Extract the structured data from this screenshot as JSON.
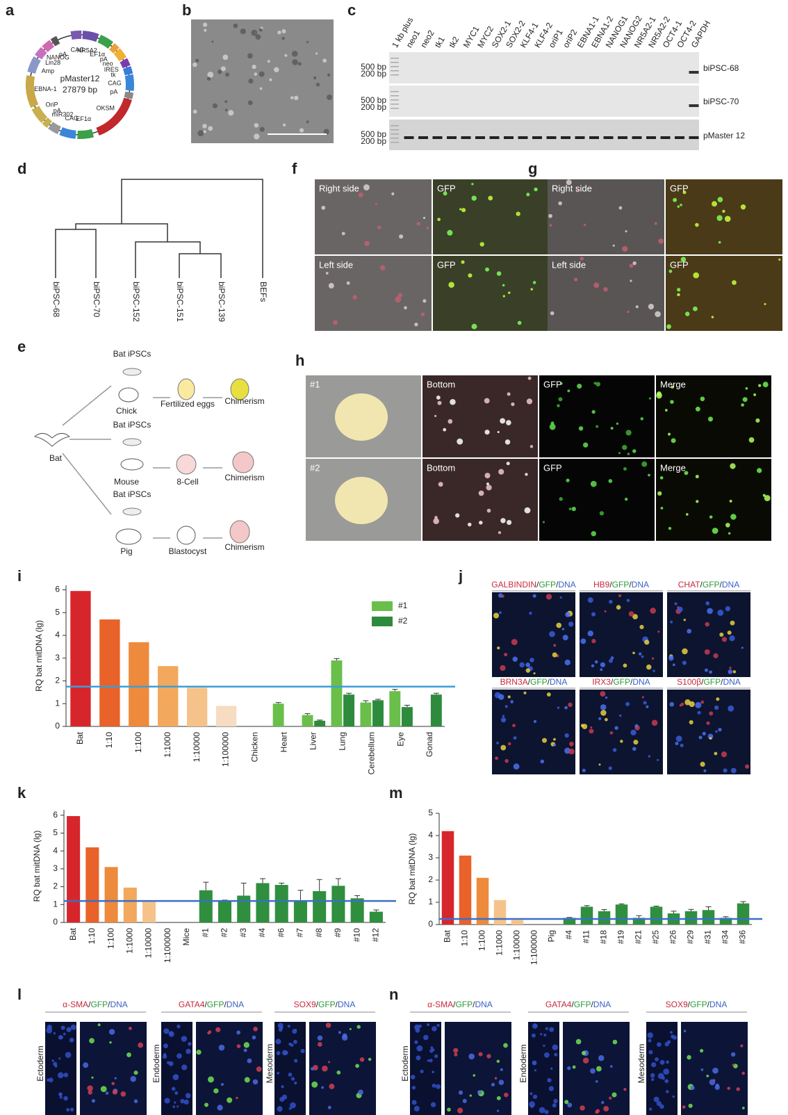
{
  "figure": {
    "panel_labels": [
      "a",
      "b",
      "c",
      "d",
      "e",
      "f",
      "g",
      "h",
      "i",
      "j",
      "k",
      "l",
      "m",
      "n"
    ],
    "a": {
      "name": "pMaster12",
      "size": "27879 bp",
      "features": [
        {
          "label": "CAG",
          "color": "#7a58b0"
        },
        {
          "label": "NR5A2",
          "color": "#6a50a8"
        },
        {
          "label": "EF1α",
          "color": "#3aa04a"
        },
        {
          "label": "pA",
          "color": "#e8a23a"
        },
        {
          "label": "neo",
          "color": "#f0b030"
        },
        {
          "label": "IRES",
          "color": "#7a3ab0"
        },
        {
          "label": "tk",
          "color": "#3a7ad8"
        },
        {
          "label": "CAG",
          "color": "#3a86d8"
        },
        {
          "label": "pA",
          "color": "#888888"
        },
        {
          "label": "OKSM",
          "color": "#c0282c"
        },
        {
          "label": "EF1α",
          "color": "#3aa04a"
        },
        {
          "label": "CAG",
          "color": "#3a86d8"
        },
        {
          "label": "miR302",
          "color": "#999999"
        },
        {
          "label": "pA",
          "color": "#c8b050"
        },
        {
          "label": "OriP",
          "color": "#c8b050"
        },
        {
          "label": "EBNA-1",
          "color": "#c8a848"
        },
        {
          "label": "Amp",
          "color": "#8a98c8"
        },
        {
          "label": "Lin28",
          "color": "#c870c0"
        },
        {
          "label": "NANOG",
          "color": "#d06ab0"
        },
        {
          "label": "pA",
          "color": "#555555"
        }
      ]
    },
    "c": {
      "lanes": [
        "1 kb plus",
        "neo1",
        "neo2",
        "tk1",
        "tk2",
        "MYC1",
        "MYC2",
        "SOX2-1",
        "SOX2-2",
        "KLF4-1",
        "KLF4-2",
        "oriP1",
        "oriP2",
        "EBNA1-1",
        "EBNA1-2",
        "NANOG1",
        "NANOG2",
        "NR5A2-1",
        "NR5A2-2",
        "OCT4-1",
        "OCT4-2",
        "GAPDH"
      ],
      "rows": [
        "biPSC-68",
        "biPSC-70",
        "pMaster 12"
      ],
      "markers": [
        "500 bp",
        "200 bp"
      ]
    },
    "d": {
      "leaves": [
        "biPSC-68",
        "biPSC-70",
        "biPSC-152",
        "biPSC-151",
        "biPSC-139",
        "BEFs"
      ]
    },
    "e": {
      "source": "Bat",
      "cell": "Bat iPSCs",
      "result": "Chimerism",
      "hosts": [
        {
          "name": "Chick",
          "stage": "Fertilized eggs"
        },
        {
          "name": "Mouse",
          "stage": "8-Cell"
        },
        {
          "name": "Pig",
          "stage": "Blastocyst"
        }
      ]
    },
    "f": {
      "views": [
        "Right side",
        "GFP",
        "Left side",
        "GFP"
      ]
    },
    "g": {
      "views": [
        "Right side",
        "GFP",
        "Left side",
        "GFP"
      ]
    },
    "h": {
      "rows": [
        {
          "id": "#1",
          "views": [
            "Bottom",
            "GFP",
            "Merge"
          ]
        },
        {
          "id": "#2",
          "views": [
            "Bottom",
            "GFP",
            "Merge"
          ]
        }
      ]
    },
    "j": {
      "stains": [
        [
          "GALBINDIN",
          "/",
          "GFP",
          "/",
          "DNA"
        ],
        [
          "HB9",
          "/",
          "GFP",
          "/",
          "DNA"
        ],
        [
          "CHAT",
          "/",
          "GFP",
          "/",
          "DNA"
        ],
        [
          "BRN3A",
          "/",
          "GFP",
          "/",
          "DNA"
        ],
        [
          "IRX3",
          "/",
          "GFP",
          "/",
          "DNA"
        ],
        [
          "S100β",
          "/",
          "GFP",
          "/",
          "DNA"
        ]
      ]
    },
    "l": {
      "stains": [
        [
          "α-SMA",
          "/",
          "GFP",
          "/",
          "DNA"
        ],
        [
          "GATA4",
          "/",
          "GFP",
          "/",
          "DNA"
        ],
        [
          "SOX9",
          "/",
          "GFP",
          "/",
          "DNA"
        ]
      ],
      "layers": [
        "Ectoderm",
        "Endoderm",
        "Mesoderm"
      ]
    },
    "n": {
      "stains": [
        [
          "α-SMA",
          "/",
          "GFP",
          "/",
          "DNA"
        ],
        [
          "GATA4",
          "/",
          "GFP",
          "/",
          "DNA"
        ],
        [
          "SOX9",
          "/",
          "GFP",
          "/",
          "DNA"
        ]
      ],
      "layers": [
        "Ectoderm",
        "Endoderm",
        "Mesoderm"
      ]
    }
  },
  "chart_data": [
    {
      "type": "bar",
      "ylabel": "RQ bat mitDNA (lg)",
      "categories": [
        "Bat",
        "1:10",
        "1:100",
        "1:1000",
        "1:10000",
        "1:100000",
        "Chicken",
        "Heart",
        "Liver",
        "Lung",
        "Cerebellum",
        "Eye",
        "Gonad"
      ],
      "values": [
        5.95,
        4.7,
        3.7,
        2.65,
        1.7,
        0.9,
        null,
        null,
        null,
        null,
        null,
        null,
        null
      ],
      "colors": [
        "#d7262b",
        "#e8622a",
        "#ee8a3c",
        "#f2a85d",
        "#f5c38a",
        "#f6dcc0",
        null,
        null,
        null,
        null,
        null,
        null,
        null
      ],
      "series": [
        {
          "name": "#1",
          "color": "#6abf4b",
          "values": [
            null,
            null,
            null,
            null,
            null,
            null,
            null,
            1.0,
            0.5,
            2.9,
            1.05,
            1.55,
            null
          ],
          "errors": [
            null,
            null,
            null,
            null,
            null,
            null,
            null,
            0.05,
            0.06,
            0.08,
            0.08,
            0.08,
            null
          ]
        },
        {
          "name": "#2",
          "color": "#2e8b3e",
          "values": [
            null,
            null,
            null,
            null,
            null,
            null,
            null,
            null,
            0.25,
            1.4,
            1.15,
            0.85,
            1.4
          ],
          "errors": [
            null,
            null,
            null,
            null,
            null,
            null,
            null,
            null,
            0.03,
            0.06,
            0.04,
            0.08,
            0.06
          ]
        }
      ],
      "ylim": [
        0,
        6.2
      ],
      "yticks": [
        0,
        1,
        2,
        3,
        4,
        5,
        6
      ],
      "threshold": 1.75,
      "threshold_color": "#3a9fd8",
      "legend": "upper right"
    },
    {
      "type": "bar",
      "ylabel": "RQ bat mitDNA (lg)",
      "categories": [
        "Bat",
        "1:10",
        "1:100",
        "1:1000",
        "1:10000",
        "1:100000",
        "Mice",
        "#1",
        "#2",
        "#3",
        "#4",
        "#6",
        "#7",
        "#8",
        "#9",
        "#10",
        "#12"
      ],
      "values": [
        5.95,
        4.2,
        3.1,
        1.95,
        1.15,
        null,
        null,
        1.8,
        1.2,
        1.5,
        2.2,
        2.1,
        1.2,
        1.75,
        2.05,
        1.35,
        0.6
      ],
      "errors": [
        null,
        null,
        null,
        null,
        null,
        null,
        null,
        0.45,
        0.05,
        0.7,
        0.25,
        0.1,
        0.6,
        0.65,
        0.4,
        0.15,
        0.1
      ],
      "colors": [
        "#d7262b",
        "#e8622a",
        "#ee8a3c",
        "#f2a85d",
        "#f5c38a",
        null,
        null,
        "#2f8f3f",
        "#2f8f3f",
        "#2f8f3f",
        "#2f8f3f",
        "#2f8f3f",
        "#2f8f3f",
        "#2f8f3f",
        "#2f8f3f",
        "#2f8f3f",
        "#2f8f3f"
      ],
      "ylim": [
        0,
        6.3
      ],
      "yticks": [
        0,
        1,
        2,
        3,
        4,
        5,
        6
      ],
      "threshold": 1.2,
      "threshold_color": "#3a6fc8"
    },
    {
      "type": "bar",
      "ylabel": "RQ bat mitDNA (lg)",
      "categories": [
        "Bat",
        "1:10",
        "1:100",
        "1:1000",
        "1:10000",
        "1:100000",
        "Pig",
        "#4",
        "#11",
        "#18",
        "#19",
        "#21",
        "#25",
        "#26",
        "#29",
        "#31",
        "#34",
        "#36"
      ],
      "values": [
        4.2,
        3.1,
        2.1,
        1.1,
        0.2,
        null,
        null,
        0.3,
        0.8,
        0.6,
        0.9,
        0.3,
        0.8,
        0.5,
        0.6,
        0.65,
        0.3,
        0.95
      ],
      "errors": [
        null,
        null,
        null,
        null,
        null,
        null,
        null,
        0.02,
        0.05,
        0.07,
        0.03,
        0.1,
        0.03,
        0.1,
        0.08,
        0.15,
        0.05,
        0.08
      ],
      "colors": [
        "#d7262b",
        "#e8622a",
        "#ee8a3c",
        "#f5c38a",
        "#f5c38a",
        null,
        null,
        "#2f8f3f",
        "#2f8f3f",
        "#2f8f3f",
        "#2f8f3f",
        "#2f8f3f",
        "#2f8f3f",
        "#2f8f3f",
        "#2f8f3f",
        "#2f8f3f",
        "#2f8f3f",
        "#2f8f3f"
      ],
      "ylim": [
        0,
        5
      ],
      "yticks": [
        0,
        1,
        2,
        3,
        4,
        5
      ],
      "threshold": 0.25,
      "threshold_color": "#3a6fc8"
    }
  ]
}
